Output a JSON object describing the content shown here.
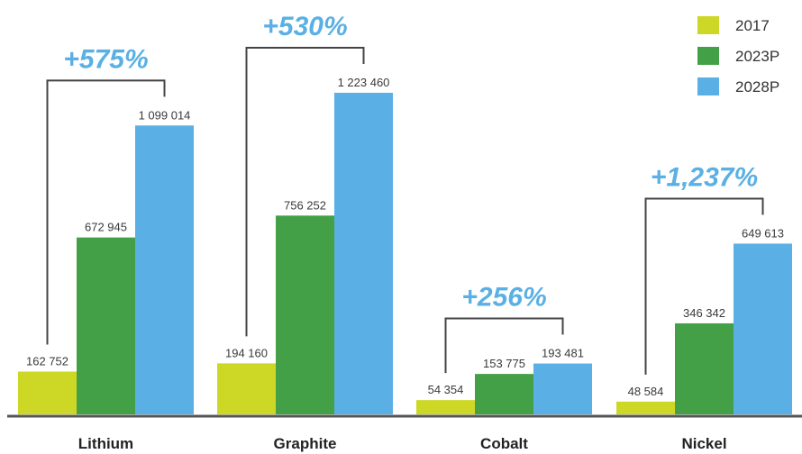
{
  "chart_data": {
    "type": "bar",
    "categories": [
      "Lithium",
      "Graphite",
      "Cobalt",
      "Nickel"
    ],
    "series": [
      {
        "name": "2017",
        "color": "#cdd826",
        "values": [
          162752,
          194160,
          54354,
          48584
        ],
        "labels": [
          "162 752",
          "194 160",
          "54 354",
          "48 584"
        ]
      },
      {
        "name": "2023P",
        "color": "#43a047",
        "values": [
          672945,
          756252,
          153775,
          346342
        ],
        "labels": [
          "672 945",
          "756 252",
          "153 775",
          "346 342"
        ]
      },
      {
        "name": "2028P",
        "color": "#5ab0e4",
        "values": [
          1099014,
          1223460,
          193481,
          649613
        ],
        "labels": [
          "1 099 014",
          "1 223 460",
          "193 481",
          "649 613"
        ]
      }
    ],
    "annotations": [
      "+575%",
      "+530%",
      "+256%",
      "+1,237%"
    ],
    "ylim": [
      0,
      1223460
    ],
    "legend_position": "top-right",
    "grid": false
  }
}
